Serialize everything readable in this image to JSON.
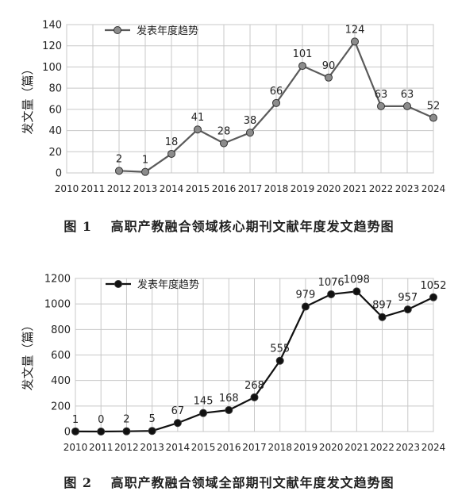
{
  "chart_data": [
    {
      "type": "line",
      "title": "",
      "xlabel": "",
      "ylabel": "发文量（篇）",
      "ylim": [
        0,
        140
      ],
      "yticks": [
        0,
        20,
        40,
        60,
        80,
        100,
        120,
        140
      ],
      "x": [
        "2010",
        "2011",
        "2012",
        "2013",
        "2014",
        "2015",
        "2016",
        "2017",
        "2018",
        "2019",
        "2020",
        "2021",
        "2022",
        "2023",
        "2024"
      ],
      "series": [
        {
          "name": "发表年度趋势",
          "x": [
            "2012",
            "2013",
            "2014",
            "2015",
            "2016",
            "2017",
            "2018",
            "2019",
            "2020",
            "2021",
            "2022",
            "2023",
            "2024"
          ],
          "values": [
            2,
            1,
            18,
            41,
            28,
            38,
            66,
            101,
            90,
            124,
            63,
            63,
            52
          ],
          "labels": [
            "2",
            "1",
            "18",
            "41",
            "28",
            "38",
            "66",
            "101",
            "90",
            "124",
            "63",
            "63",
            "52"
          ],
          "color": "#5a5a5a",
          "marker_fill": "#8c8c8c"
        }
      ],
      "grid": true,
      "legend": "top-left",
      "caption": "图 1　 高职产教融合领域核心期刊文献年度发文趋势图"
    },
    {
      "type": "line",
      "title": "",
      "xlabel": "",
      "ylabel": "发文量（篇）",
      "ylim": [
        0,
        1200
      ],
      "yticks": [
        0,
        200,
        400,
        600,
        800,
        1000,
        1200
      ],
      "x": [
        "2010",
        "2011",
        "2012",
        "2013",
        "2014",
        "2015",
        "2016",
        "2017",
        "2018",
        "2019",
        "2020",
        "2021",
        "2022",
        "2023",
        "2024"
      ],
      "series": [
        {
          "name": "发表年度趋势",
          "x": [
            "2010",
            "2011",
            "2012",
            "2013",
            "2014",
            "2015",
            "2016",
            "2017",
            "2018",
            "2019",
            "2020",
            "2021",
            "2022",
            "2023",
            "2024"
          ],
          "values": [
            1,
            0,
            2,
            5,
            67,
            145,
            168,
            268,
            555,
            979,
            1076,
            1098,
            897,
            957,
            1052
          ],
          "labels": [
            "1",
            "0",
            "2",
            "5",
            "67",
            "145",
            "168",
            "268",
            "555",
            "979",
            "1076",
            "1098",
            "897",
            "957",
            "1052"
          ],
          "color": "#111111",
          "marker_fill": "#111111"
        }
      ],
      "grid": true,
      "legend": "top-left",
      "caption": "图 2　 高职产教融合领域全部期刊文献年度发文趋势图"
    }
  ]
}
